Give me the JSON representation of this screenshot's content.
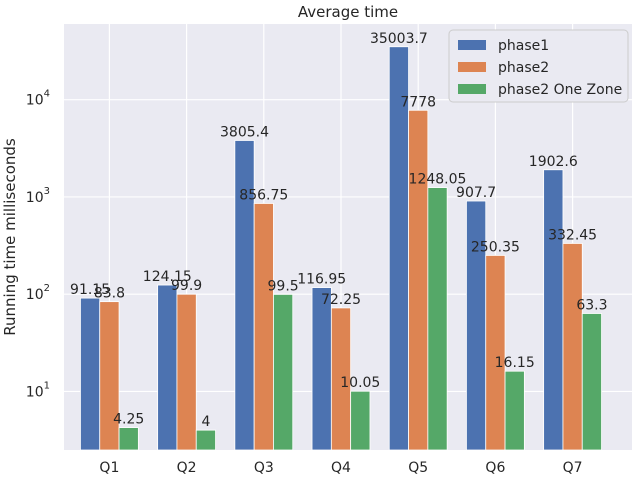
{
  "chart_data": {
    "type": "bar",
    "title": "Average time",
    "xlabel": "",
    "ylabel": "Running time milliseconds",
    "yscale": "log",
    "ylim": [
      2.5,
      60000
    ],
    "grid": true,
    "legend_position": "top-right",
    "categories": [
      "Q1",
      "Q2",
      "Q3",
      "Q4",
      "Q5",
      "Q6",
      "Q7"
    ],
    "series": [
      {
        "name": "phase1",
        "color": "#4c72b0",
        "values": [
          91.15,
          124.15,
          3805.4,
          116.95,
          35003.7,
          907.7,
          1902.6
        ],
        "labels": [
          "91.15",
          "124.15",
          "3805.4",
          "116.95",
          "35003.7",
          "907.7",
          "1902.6"
        ]
      },
      {
        "name": "phase2",
        "color": "#dd8452",
        "values": [
          83.8,
          99.9,
          856.75,
          72.25,
          7778,
          250.35,
          332.45
        ],
        "labels": [
          "83.8",
          "99.9",
          "856.75",
          "72.25",
          "7778",
          "250.35",
          "332.45"
        ]
      },
      {
        "name": "phase2 One Zone",
        "color": "#55a868",
        "values": [
          4.25,
          4,
          99.5,
          10.05,
          1248.05,
          16.15,
          63.3
        ],
        "labels": [
          "4.25",
          "4",
          "99.5",
          "10.05",
          "1248.05",
          "16.15",
          "63.3"
        ]
      }
    ],
    "y_ticks": [
      {
        "base": "10",
        "exp": "1",
        "value": 10
      },
      {
        "base": "10",
        "exp": "2",
        "value": 100
      },
      {
        "base": "10",
        "exp": "3",
        "value": 1000
      },
      {
        "base": "10",
        "exp": "4",
        "value": 10000
      }
    ]
  }
}
